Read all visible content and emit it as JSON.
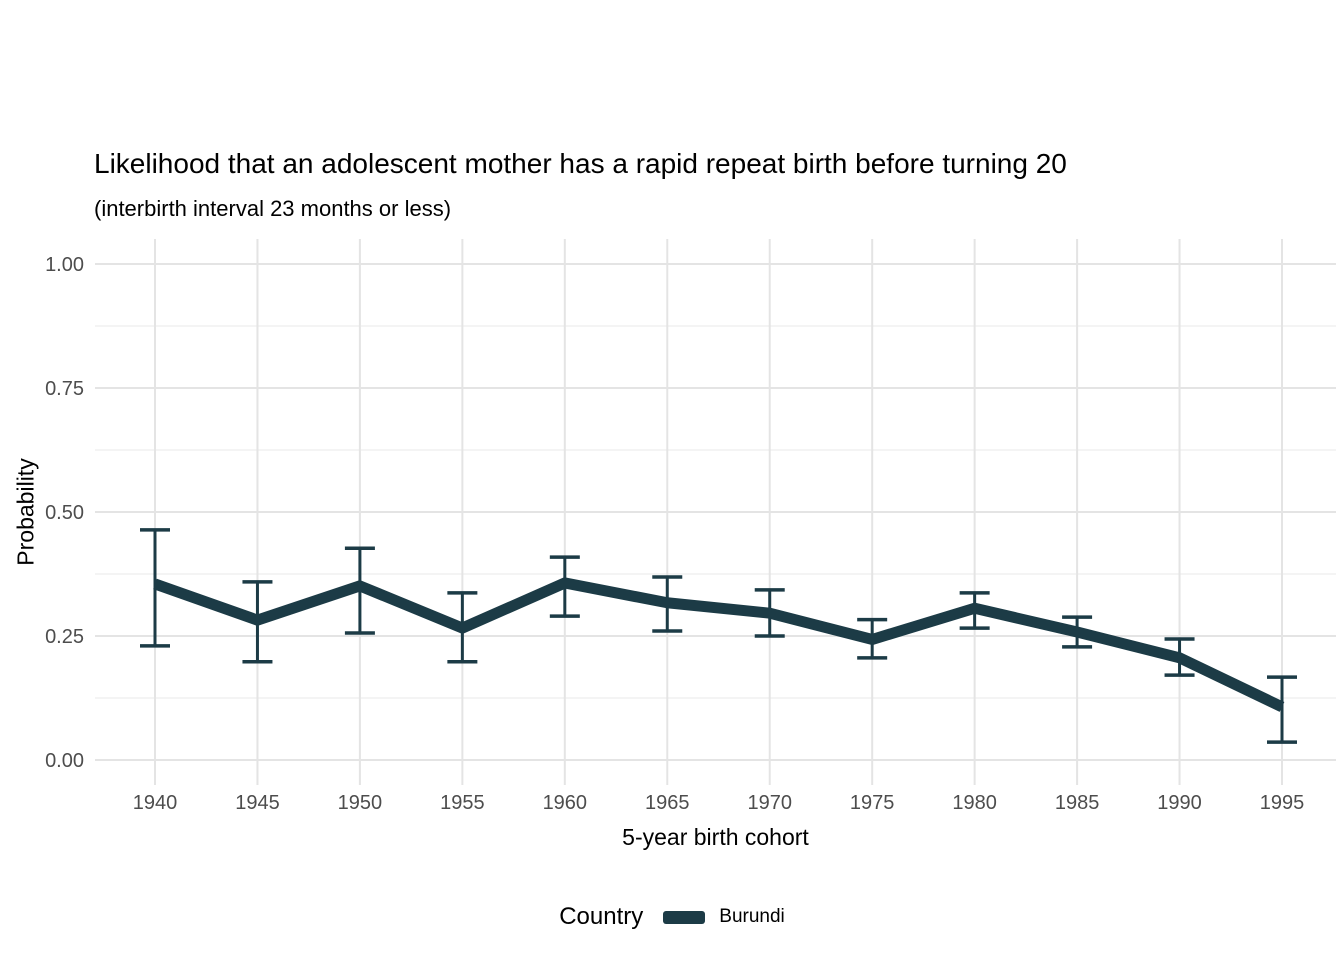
{
  "page": {
    "background": "#ffffff"
  },
  "chart_data": {
    "type": "line",
    "title": "Likelihood that an adolescent mother has a rapid repeat birth before turning 20",
    "subtitle": "(interbirth interval 23 months or less)",
    "xlabel": "5-year birth cohort",
    "ylabel": "Probability",
    "legend_title": "Country",
    "legend_position": "bottom",
    "x": [
      1940,
      1945,
      1950,
      1955,
      1960,
      1965,
      1970,
      1975,
      1980,
      1985,
      1990,
      1995
    ],
    "series": [
      {
        "name": "Burundi",
        "color": "#1c3b46",
        "values": [
          0.355,
          0.282,
          0.351,
          0.266,
          0.357,
          0.317,
          0.296,
          0.243,
          0.306,
          0.258,
          0.206,
          0.107
        ],
        "lower": [
          0.23,
          0.198,
          0.256,
          0.198,
          0.29,
          0.26,
          0.25,
          0.206,
          0.266,
          0.228,
          0.171,
          0.036
        ],
        "upper": [
          0.464,
          0.359,
          0.427,
          0.337,
          0.409,
          0.369,
          0.343,
          0.283,
          0.337,
          0.288,
          0.244,
          0.167
        ]
      }
    ],
    "error_bars": true,
    "ylim": [
      0,
      1
    ],
    "yticks": [
      0,
      0.25,
      0.5,
      0.75,
      1
    ],
    "ytick_labels": [
      "0.00",
      "0.25",
      "0.50",
      "0.75",
      "1.00"
    ],
    "grid": "horizontal major+minor, vertical major",
    "colors": {
      "grid_major": "#e4e4e4",
      "grid_minor": "#f0f0f0",
      "tick_text": "#4d4d4d",
      "title_text": "#000000"
    }
  }
}
